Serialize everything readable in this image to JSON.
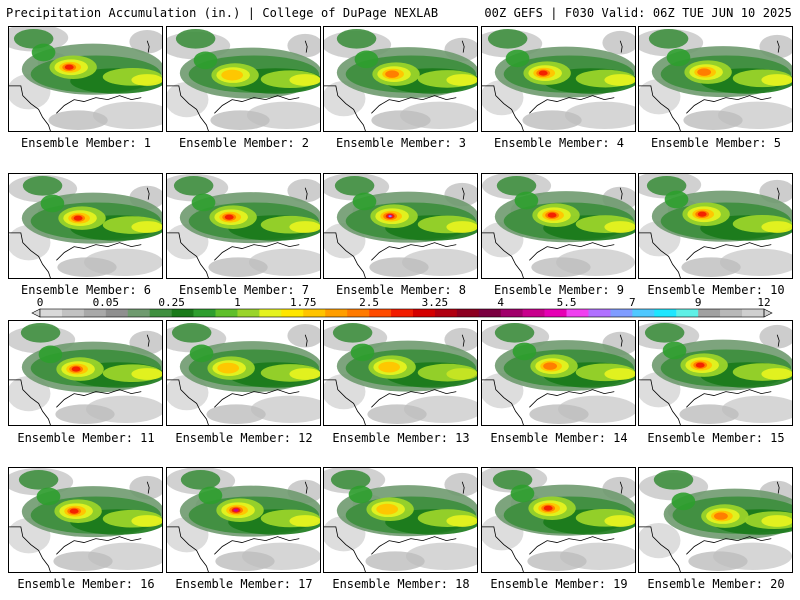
{
  "header": {
    "left_title": "Precipitation Accumulation (in.) | College of DuPage NEXLAB",
    "right_title": "00Z GEFS | F030 Valid: 06Z TUE JUN 10 2025"
  },
  "colorbar": {
    "tick_labels": [
      {
        "label": "0",
        "index": 0
      },
      {
        "label": "0.05",
        "index": 3
      },
      {
        "label": "0.25",
        "index": 6
      },
      {
        "label": "1",
        "index": 9
      },
      {
        "label": "1.75",
        "index": 12
      },
      {
        "label": "2.5",
        "index": 15
      },
      {
        "label": "3.25",
        "index": 18
      },
      {
        "label": "4",
        "index": 21
      },
      {
        "label": "5.5",
        "index": 24
      },
      {
        "label": "7",
        "index": 27
      },
      {
        "label": "9",
        "index": 30
      },
      {
        "label": "12",
        "index": 33
      }
    ],
    "colors": [
      "#d9d9d9",
      "#c2c2c2",
      "#a9a9a9",
      "#8f8f8f",
      "#6f9a6f",
      "#3f8f3f",
      "#1a7a1a",
      "#2e9e2e",
      "#5fbf2a",
      "#9ad42a",
      "#e5f21f",
      "#ffe600",
      "#ffc400",
      "#ff9e00",
      "#ff7a00",
      "#ff4b00",
      "#f21c00",
      "#d40000",
      "#b00010",
      "#8c0020",
      "#7a0040",
      "#a0006a",
      "#c8008c",
      "#e600b4",
      "#f040f0",
      "#b070ff",
      "#7f9cff",
      "#4fc8ff",
      "#1fe6ff",
      "#5ff0e6",
      "#a0a0a0",
      "#b8b8b8",
      "#cfcfcf"
    ]
  },
  "members": [
    {
      "label": "Ensemble Member: 1",
      "intensity": 2.4
    },
    {
      "label": "Ensemble Member: 2",
      "intensity": 2.1
    },
    {
      "label": "Ensemble Member: 3",
      "intensity": 2.2
    },
    {
      "label": "Ensemble Member: 4",
      "intensity": 2.6
    },
    {
      "label": "Ensemble Member: 5",
      "intensity": 2.2
    },
    {
      "label": "Ensemble Member: 6",
      "intensity": 2.7
    },
    {
      "label": "Ensemble Member: 7",
      "intensity": 2.8
    },
    {
      "label": "Ensemble Member: 8",
      "intensity": 3.4
    },
    {
      "label": "Ensemble Member: 9",
      "intensity": 2.5
    },
    {
      "label": "Ensemble Member: 10",
      "intensity": 2.5
    },
    {
      "label": "Ensemble Member: 11",
      "intensity": 2.7
    },
    {
      "label": "Ensemble Member: 12",
      "intensity": 2.0
    },
    {
      "label": "Ensemble Member: 13",
      "intensity": 1.8
    },
    {
      "label": "Ensemble Member: 14",
      "intensity": 2.3
    },
    {
      "label": "Ensemble Member: 15",
      "intensity": 2.5
    },
    {
      "label": "Ensemble Member: 16",
      "intensity": 2.4
    },
    {
      "label": "Ensemble Member: 17",
      "intensity": 3.2
    },
    {
      "label": "Ensemble Member: 18",
      "intensity": 2.0
    },
    {
      "label": "Ensemble Member: 19",
      "intensity": 2.6
    },
    {
      "label": "Ensemble Member: 20",
      "intensity": 2.3
    }
  ]
}
